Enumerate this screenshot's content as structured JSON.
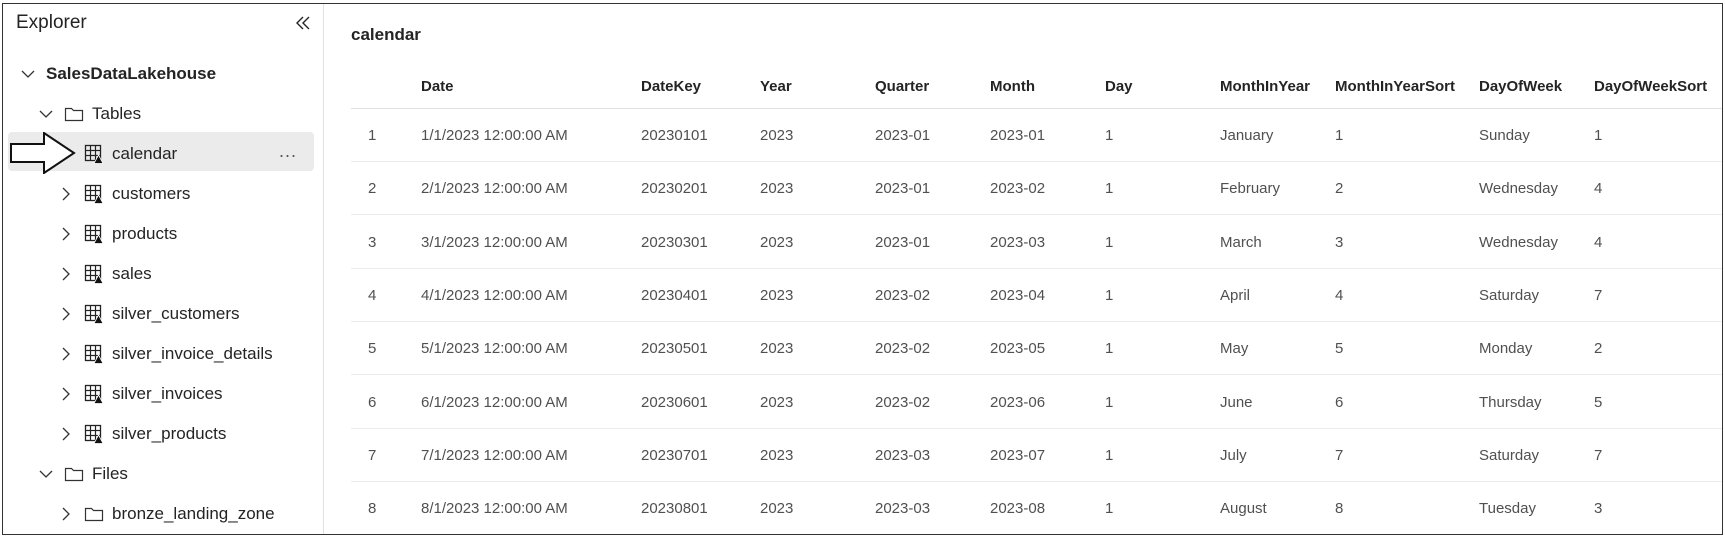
{
  "explorer": {
    "title": "Explorer",
    "lakehouse": "SalesDataLakehouse",
    "tables_folder": "Tables",
    "tables": [
      {
        "label": "calendar",
        "selected": true
      },
      {
        "label": "customers"
      },
      {
        "label": "products"
      },
      {
        "label": "sales"
      },
      {
        "label": "silver_customers"
      },
      {
        "label": "silver_invoice_details"
      },
      {
        "label": "silver_invoices"
      },
      {
        "label": "silver_products"
      }
    ],
    "files_folder": "Files",
    "files": [
      {
        "label": "bronze_landing_zone"
      }
    ],
    "more_label": "..."
  },
  "main": {
    "title": "calendar",
    "columns": [
      "",
      "Date",
      "DateKey",
      "Year",
      "Quarter",
      "Month",
      "Day",
      "MonthInYear",
      "MonthInYearSort",
      "DayOfWeek",
      "DayOfWeekSort"
    ],
    "rows": [
      [
        "1",
        "1/1/2023 12:00:00 AM",
        "20230101",
        "2023",
        "2023-01",
        "2023-01",
        "1",
        "January",
        "1",
        "Sunday",
        "1"
      ],
      [
        "2",
        "2/1/2023 12:00:00 AM",
        "20230201",
        "2023",
        "2023-01",
        "2023-02",
        "1",
        "February",
        "2",
        "Wednesday",
        "4"
      ],
      [
        "3",
        "3/1/2023 12:00:00 AM",
        "20230301",
        "2023",
        "2023-01",
        "2023-03",
        "1",
        "March",
        "3",
        "Wednesday",
        "4"
      ],
      [
        "4",
        "4/1/2023 12:00:00 AM",
        "20230401",
        "2023",
        "2023-02",
        "2023-04",
        "1",
        "April",
        "4",
        "Saturday",
        "7"
      ],
      [
        "5",
        "5/1/2023 12:00:00 AM",
        "20230501",
        "2023",
        "2023-02",
        "2023-05",
        "1",
        "May",
        "5",
        "Monday",
        "2"
      ],
      [
        "6",
        "6/1/2023 12:00:00 AM",
        "20230601",
        "2023",
        "2023-02",
        "2023-06",
        "1",
        "June",
        "6",
        "Thursday",
        "5"
      ],
      [
        "7",
        "7/1/2023 12:00:00 AM",
        "20230701",
        "2023",
        "2023-03",
        "2023-07",
        "1",
        "July",
        "7",
        "Saturday",
        "7"
      ],
      [
        "8",
        "8/1/2023 12:00:00 AM",
        "20230801",
        "2023",
        "2023-03",
        "2023-08",
        "1",
        "August",
        "8",
        "Tuesday",
        "3"
      ]
    ]
  }
}
